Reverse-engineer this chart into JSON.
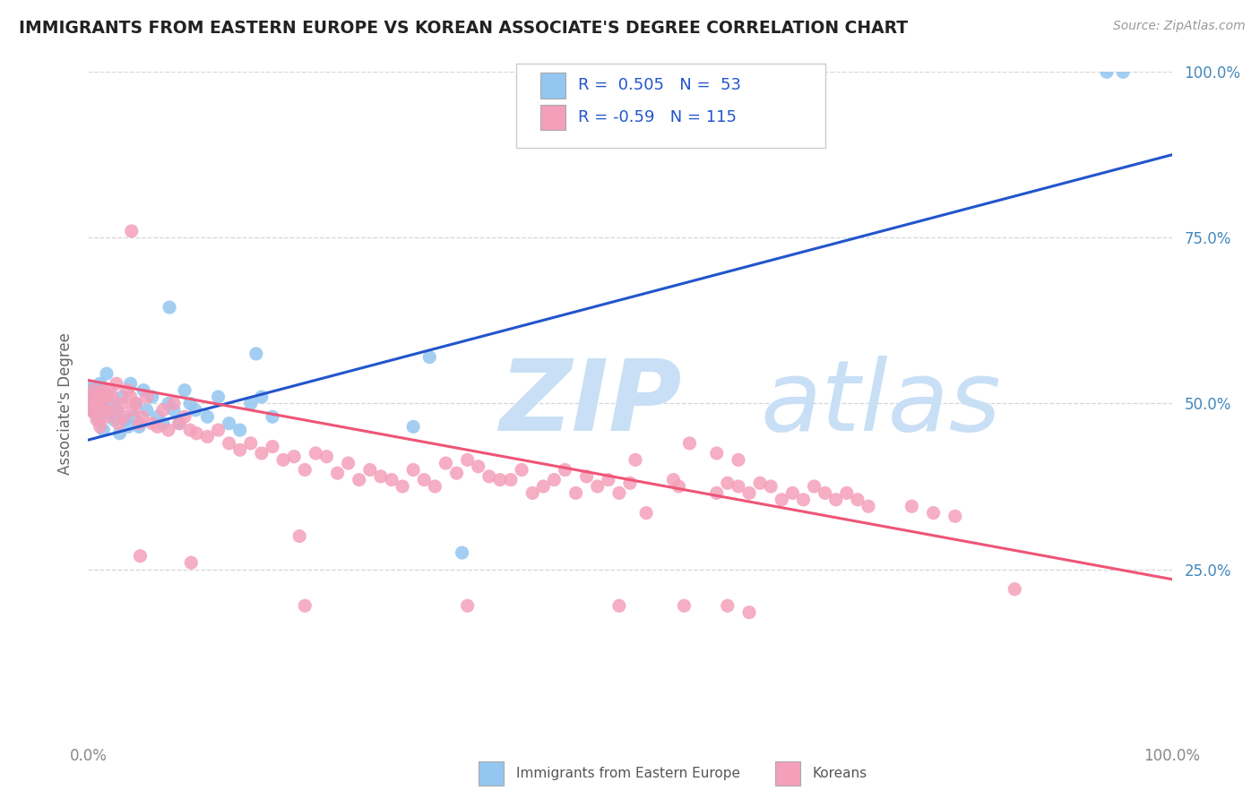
{
  "title": "IMMIGRANTS FROM EASTERN EUROPE VS KOREAN ASSOCIATE'S DEGREE CORRELATION CHART",
  "source": "Source: ZipAtlas.com",
  "ylabel": "Associate's Degree",
  "xlim": [
    0.0,
    1.0
  ],
  "ylim": [
    0.0,
    1.0
  ],
  "x_tick_labels": [
    "0.0%",
    "100.0%"
  ],
  "y_tick_labels": [
    "25.0%",
    "50.0%",
    "75.0%",
    "100.0%"
  ],
  "y_tick_values": [
    0.25,
    0.5,
    0.75,
    1.0
  ],
  "legend1_label": "Immigrants from Eastern Europe",
  "legend2_label": "Koreans",
  "R1": 0.505,
  "N1": 53,
  "R2": -0.59,
  "N2": 115,
  "blue_color": "#93C6F0",
  "pink_color": "#F4A0BA",
  "blue_line_color": "#2255CC",
  "pink_line_color": "#EE5577",
  "title_color": "#222222",
  "watermark_zip_color": "#C8DFF5",
  "watermark_atlas_color": "#C8DFF5",
  "background_color": "#FFFFFF",
  "grid_color": "#CCCCCC",
  "right_label_color": "#4488BB",
  "blue_line": [
    [
      0.0,
      0.445
    ],
    [
      1.0,
      0.875
    ]
  ],
  "pink_line": [
    [
      0.0,
      0.535
    ],
    [
      1.0,
      0.235
    ]
  ],
  "blue_scatter": [
    [
      0.001,
      0.515
    ],
    [
      0.002,
      0.52
    ],
    [
      0.002,
      0.5
    ],
    [
      0.003,
      0.51
    ],
    [
      0.004,
      0.525
    ],
    [
      0.005,
      0.49
    ],
    [
      0.006,
      0.51
    ],
    [
      0.007,
      0.485
    ],
    [
      0.008,
      0.5
    ],
    [
      0.009,
      0.52
    ],
    [
      0.01,
      0.475
    ],
    [
      0.011,
      0.53
    ],
    [
      0.013,
      0.495
    ],
    [
      0.014,
      0.46
    ],
    [
      0.015,
      0.51
    ],
    [
      0.017,
      0.545
    ],
    [
      0.019,
      0.485
    ],
    [
      0.021,
      0.5
    ],
    [
      0.024,
      0.475
    ],
    [
      0.027,
      0.49
    ],
    [
      0.029,
      0.455
    ],
    [
      0.031,
      0.51
    ],
    [
      0.034,
      0.475
    ],
    [
      0.037,
      0.465
    ],
    [
      0.039,
      0.53
    ],
    [
      0.042,
      0.48
    ],
    [
      0.044,
      0.5
    ],
    [
      0.047,
      0.465
    ],
    [
      0.051,
      0.52
    ],
    [
      0.054,
      0.49
    ],
    [
      0.059,
      0.51
    ],
    [
      0.064,
      0.48
    ],
    [
      0.069,
      0.47
    ],
    [
      0.074,
      0.5
    ],
    [
      0.079,
      0.49
    ],
    [
      0.084,
      0.47
    ],
    [
      0.089,
      0.52
    ],
    [
      0.094,
      0.5
    ],
    [
      0.099,
      0.49
    ],
    [
      0.075,
      0.645
    ],
    [
      0.155,
      0.575
    ],
    [
      0.3,
      0.465
    ],
    [
      0.315,
      0.57
    ],
    [
      0.345,
      0.275
    ],
    [
      0.11,
      0.48
    ],
    [
      0.12,
      0.51
    ],
    [
      0.13,
      0.47
    ],
    [
      0.14,
      0.46
    ],
    [
      0.15,
      0.5
    ],
    [
      0.16,
      0.51
    ],
    [
      0.17,
      0.48
    ],
    [
      0.955,
      1.0
    ],
    [
      0.94,
      1.0
    ]
  ],
  "pink_scatter": [
    [
      0.001,
      0.5
    ],
    [
      0.002,
      0.49
    ],
    [
      0.003,
      0.51
    ],
    [
      0.004,
      0.5
    ],
    [
      0.005,
      0.52
    ],
    [
      0.006,
      0.485
    ],
    [
      0.007,
      0.495
    ],
    [
      0.008,
      0.475
    ],
    [
      0.009,
      0.505
    ],
    [
      0.01,
      0.515
    ],
    [
      0.011,
      0.465
    ],
    [
      0.012,
      0.5
    ],
    [
      0.014,
      0.52
    ],
    [
      0.015,
      0.49
    ],
    [
      0.017,
      0.51
    ],
    [
      0.018,
      0.48
    ],
    [
      0.02,
      0.52
    ],
    [
      0.022,
      0.51
    ],
    [
      0.024,
      0.49
    ],
    [
      0.026,
      0.53
    ],
    [
      0.028,
      0.47
    ],
    [
      0.031,
      0.5
    ],
    [
      0.033,
      0.48
    ],
    [
      0.036,
      0.52
    ],
    [
      0.039,
      0.51
    ],
    [
      0.041,
      0.49
    ],
    [
      0.044,
      0.5
    ],
    [
      0.047,
      0.47
    ],
    [
      0.05,
      0.48
    ],
    [
      0.054,
      0.51
    ],
    [
      0.059,
      0.47
    ],
    [
      0.064,
      0.465
    ],
    [
      0.069,
      0.49
    ],
    [
      0.074,
      0.46
    ],
    [
      0.079,
      0.5
    ],
    [
      0.084,
      0.47
    ],
    [
      0.089,
      0.48
    ],
    [
      0.094,
      0.46
    ],
    [
      0.04,
      0.76
    ],
    [
      0.1,
      0.455
    ],
    [
      0.11,
      0.45
    ],
    [
      0.12,
      0.46
    ],
    [
      0.13,
      0.44
    ],
    [
      0.14,
      0.43
    ],
    [
      0.15,
      0.44
    ],
    [
      0.16,
      0.425
    ],
    [
      0.17,
      0.435
    ],
    [
      0.18,
      0.415
    ],
    [
      0.19,
      0.42
    ],
    [
      0.2,
      0.4
    ],
    [
      0.21,
      0.425
    ],
    [
      0.22,
      0.42
    ],
    [
      0.23,
      0.395
    ],
    [
      0.24,
      0.41
    ],
    [
      0.25,
      0.385
    ],
    [
      0.26,
      0.4
    ],
    [
      0.27,
      0.39
    ],
    [
      0.28,
      0.385
    ],
    [
      0.29,
      0.375
    ],
    [
      0.3,
      0.4
    ],
    [
      0.31,
      0.385
    ],
    [
      0.32,
      0.375
    ],
    [
      0.33,
      0.41
    ],
    [
      0.34,
      0.395
    ],
    [
      0.35,
      0.415
    ],
    [
      0.36,
      0.405
    ],
    [
      0.37,
      0.39
    ],
    [
      0.38,
      0.385
    ],
    [
      0.39,
      0.385
    ],
    [
      0.4,
      0.4
    ],
    [
      0.41,
      0.365
    ],
    [
      0.42,
      0.375
    ],
    [
      0.43,
      0.385
    ],
    [
      0.44,
      0.4
    ],
    [
      0.45,
      0.365
    ],
    [
      0.46,
      0.39
    ],
    [
      0.47,
      0.375
    ],
    [
      0.48,
      0.385
    ],
    [
      0.49,
      0.365
    ],
    [
      0.5,
      0.38
    ],
    [
      0.54,
      0.385
    ],
    [
      0.58,
      0.365
    ],
    [
      0.59,
      0.38
    ],
    [
      0.6,
      0.375
    ],
    [
      0.61,
      0.365
    ],
    [
      0.62,
      0.38
    ],
    [
      0.63,
      0.375
    ],
    [
      0.64,
      0.355
    ],
    [
      0.65,
      0.365
    ],
    [
      0.66,
      0.355
    ],
    [
      0.67,
      0.375
    ],
    [
      0.68,
      0.365
    ],
    [
      0.69,
      0.355
    ],
    [
      0.7,
      0.365
    ],
    [
      0.71,
      0.355
    ],
    [
      0.72,
      0.345
    ],
    [
      0.048,
      0.27
    ],
    [
      0.095,
      0.26
    ],
    [
      0.195,
      0.3
    ],
    [
      0.2,
      0.195
    ],
    [
      0.35,
      0.195
    ],
    [
      0.49,
      0.195
    ],
    [
      0.55,
      0.195
    ],
    [
      0.505,
      0.415
    ],
    [
      0.545,
      0.375
    ],
    [
      0.515,
      0.335
    ],
    [
      0.59,
      0.195
    ],
    [
      0.61,
      0.185
    ],
    [
      0.855,
      0.22
    ],
    [
      0.555,
      0.44
    ],
    [
      0.58,
      0.425
    ],
    [
      0.6,
      0.415
    ],
    [
      0.76,
      0.345
    ],
    [
      0.78,
      0.335
    ],
    [
      0.8,
      0.33
    ]
  ]
}
